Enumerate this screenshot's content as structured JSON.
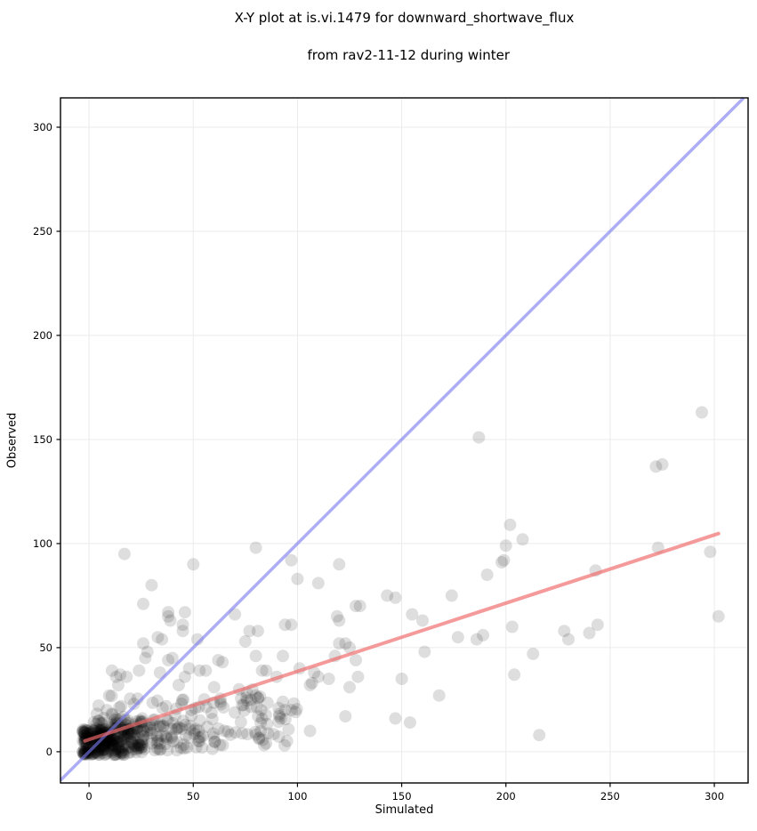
{
  "chart_data": {
    "type": "scatter",
    "title_line1": "X-Y plot at is.vi.1479 for downward_shortwave_flux",
    "title_line2": "from rav2-11-12 during winter",
    "xlabel": "Simulated",
    "ylabel": "Observed",
    "xlim": [
      -13.7,
      316.2
    ],
    "ylim": [
      -15.0,
      314.1
    ],
    "x_ticks": [
      0,
      50,
      100,
      150,
      200,
      250,
      300
    ],
    "y_ticks": [
      0,
      50,
      100,
      150,
      200,
      250,
      300
    ],
    "grid": true,
    "grid_color": "#ebebeb",
    "spine_color": "#000000",
    "point_color": "#000000",
    "point_opacity": 0.13,
    "point_radius": 7,
    "one_to_one_line": {
      "name": "1:1 line",
      "color": "rgb(122,122,240)",
      "opacity": 0.62,
      "width": 3.5,
      "x": [
        -13.7,
        314.1
      ],
      "y": [
        -13.7,
        314.1
      ]
    },
    "fit_line": {
      "name": "regression line",
      "color": "rgb(240,106,106)",
      "opacity": 0.68,
      "width": 4,
      "x": [
        -2,
        302
      ],
      "y": [
        5.2,
        104.8
      ],
      "slope": 0.33,
      "intercept": 5.8
    },
    "points": [
      [
        294,
        163
      ],
      [
        187,
        151
      ],
      [
        272,
        137
      ],
      [
        275,
        138
      ],
      [
        202,
        109
      ],
      [
        208,
        102
      ],
      [
        200,
        99
      ],
      [
        199,
        92
      ],
      [
        198,
        91
      ],
      [
        273,
        98
      ],
      [
        298,
        96
      ],
      [
        243,
        87
      ],
      [
        191,
        85
      ],
      [
        302,
        65
      ],
      [
        216,
        8
      ],
      [
        213,
        47
      ],
      [
        204,
        37
      ],
      [
        203,
        60
      ],
      [
        228,
        58
      ],
      [
        230,
        54
      ],
      [
        240,
        57
      ],
      [
        244,
        61
      ],
      [
        17,
        95
      ],
      [
        50,
        90
      ],
      [
        80,
        98
      ],
      [
        97,
        92
      ],
      [
        120,
        90
      ],
      [
        100,
        83
      ],
      [
        110,
        81
      ],
      [
        30,
        80
      ],
      [
        26,
        71
      ],
      [
        38,
        67
      ],
      [
        39,
        63
      ],
      [
        46,
        67
      ],
      [
        70,
        66
      ],
      [
        45,
        58
      ],
      [
        81,
        58
      ],
      [
        143,
        75
      ],
      [
        147,
        74
      ],
      [
        174,
        75
      ],
      [
        130,
        70
      ],
      [
        128,
        70
      ],
      [
        155,
        66
      ],
      [
        120,
        63
      ],
      [
        160,
        63
      ],
      [
        97,
        61
      ],
      [
        177,
        55
      ],
      [
        186,
        54
      ],
      [
        189,
        56
      ],
      [
        93,
        46
      ],
      [
        118,
        46
      ],
      [
        123,
        52
      ],
      [
        125,
        50
      ],
      [
        101,
        40
      ],
      [
        108,
        38
      ],
      [
        106,
        32
      ],
      [
        115,
        35
      ],
      [
        128,
        44
      ],
      [
        161,
        48
      ],
      [
        150,
        35
      ],
      [
        168,
        27
      ],
      [
        91,
        21
      ],
      [
        94,
        20
      ],
      [
        97,
        20
      ],
      [
        92,
        16
      ],
      [
        123,
        17
      ],
      [
        106,
        10
      ],
      [
        147,
        16
      ],
      [
        154,
        14
      ],
      [
        38,
        65
      ],
      [
        45,
        61
      ],
      [
        33,
        55
      ],
      [
        35,
        54
      ],
      [
        52,
        54
      ],
      [
        26,
        52
      ],
      [
        28,
        48
      ],
      [
        27,
        45
      ],
      [
        38,
        44
      ],
      [
        40,
        45
      ],
      [
        43,
        32
      ],
      [
        46,
        36
      ],
      [
        48,
        40
      ],
      [
        11,
        39
      ],
      [
        15,
        37
      ],
      [
        13,
        36
      ],
      [
        18,
        36
      ],
      [
        14,
        32
      ],
      [
        53,
        39
      ],
      [
        56,
        39
      ],
      [
        62,
        44
      ],
      [
        64,
        43
      ],
      [
        77,
        58
      ],
      [
        80,
        46
      ],
      [
        83,
        39
      ],
      [
        94,
        61
      ],
      [
        107,
        33
      ],
      [
        110,
        36
      ],
      [
        119,
        65
      ],
      [
        120,
        52
      ],
      [
        129,
        36
      ],
      [
        125,
        31
      ],
      [
        75,
        53
      ],
      [
        24,
        39
      ],
      [
        34,
        38
      ],
      [
        60,
        31
      ],
      [
        72,
        30
      ],
      [
        80,
        27
      ],
      [
        85,
        39
      ],
      [
        90,
        36
      ],
      [
        63,
        24
      ],
      [
        93,
        24
      ]
    ],
    "dense_clusters": [
      {
        "note": "very dense core blob near origin",
        "count": 240,
        "seed": 11,
        "x_range": [
          -3,
          26
        ],
        "x_bias": 1.35,
        "y_range": [
          -1.5,
          11.5
        ],
        "y_bias": 1.15
      },
      {
        "note": "dense band",
        "count": 130,
        "seed": 22,
        "x_range": [
          2,
          60
        ],
        "x_bias": 1.25,
        "y_range": [
          0.5,
          17
        ],
        "y_bias": 1.1
      },
      {
        "note": "medium band",
        "count": 80,
        "seed": 33,
        "x_range": [
          22,
          95
        ],
        "x_bias": 1.15,
        "y_range": [
          3,
          26
        ],
        "y_bias": 1.25
      },
      {
        "note": "upward fringe at small x",
        "count": 28,
        "seed": 44,
        "x_range": [
          3,
          22
        ],
        "x_bias": 1.0,
        "y_range": [
          9,
          27
        ],
        "y_bias": 1.4
      },
      {
        "note": "sparse tail",
        "count": 22,
        "seed": 55,
        "x_range": [
          60,
          118
        ],
        "x_bias": 1.2,
        "y_range": [
          8,
          30
        ],
        "y_bias": 1.3
      }
    ]
  }
}
